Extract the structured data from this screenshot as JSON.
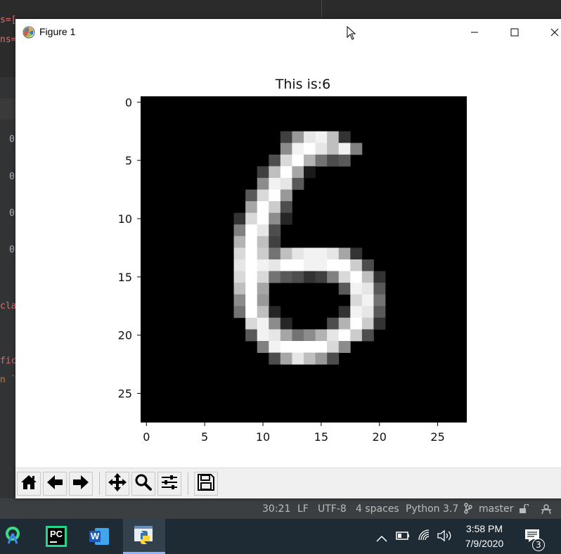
{
  "ide": {
    "code_fragments": [
      "s=[",
      "ns=",
      "0",
      "0",
      "0",
      "0",
      "cla",
      "fic",
      "n `",
      "'])"
    ],
    "status": {
      "position": "30:21",
      "line_ending": "LF",
      "encoding": "UTF-8",
      "indent": "4 spaces",
      "interpreter": "Python 3.7",
      "branch": "master"
    }
  },
  "figure_window": {
    "title": "Figure 1",
    "icon": "matplotlib-icon",
    "controls": [
      "minimize-icon",
      "maximize-icon",
      "close-icon"
    ]
  },
  "chart_data": {
    "type": "heatmap",
    "title": "This is:6",
    "colormap": "gray",
    "x_ticks": [
      "0",
      "5",
      "10",
      "15",
      "20",
      "25"
    ],
    "y_ticks": [
      "0",
      "5",
      "10",
      "15",
      "20",
      "25"
    ],
    "xlim": [
      -0.5,
      27.5
    ],
    "ylim": [
      27.5,
      -0.5
    ],
    "grid": false,
    "size": [
      28,
      28
    ],
    "pixels": [
      {
        "row": 3,
        "cells": [
          [
            12,
            0.25
          ],
          [
            13,
            0.6
          ],
          [
            14,
            0.9
          ],
          [
            15,
            0.95
          ],
          [
            16,
            0.75
          ],
          [
            17,
            0.2
          ]
        ]
      },
      {
        "row": 4,
        "cells": [
          [
            12,
            0.55
          ],
          [
            13,
            0.95
          ],
          [
            14,
            1
          ],
          [
            15,
            0.9
          ],
          [
            16,
            0.75
          ],
          [
            17,
            0.95
          ],
          [
            18,
            0.5
          ]
        ]
      },
      {
        "row": 5,
        "cells": [
          [
            11,
            0.3
          ],
          [
            12,
            0.85
          ],
          [
            13,
            1
          ],
          [
            14,
            0.7
          ],
          [
            15,
            0.45
          ],
          [
            16,
            0.3
          ],
          [
            17,
            0.35
          ]
        ]
      },
      {
        "row": 6,
        "cells": [
          [
            10,
            0.25
          ],
          [
            11,
            0.75
          ],
          [
            12,
            1
          ],
          [
            13,
            0.65
          ],
          [
            14,
            0.1
          ]
        ]
      },
      {
        "row": 7,
        "cells": [
          [
            10,
            0.55
          ],
          [
            11,
            0.95
          ],
          [
            12,
            0.9
          ],
          [
            13,
            0.35
          ]
        ]
      },
      {
        "row": 8,
        "cells": [
          [
            9,
            0.35
          ],
          [
            10,
            0.85
          ],
          [
            11,
            1
          ],
          [
            12,
            0.6
          ]
        ]
      },
      {
        "row": 9,
        "cells": [
          [
            9,
            0.65
          ],
          [
            10,
            1
          ],
          [
            11,
            0.8
          ],
          [
            12,
            0.3
          ]
        ]
      },
      {
        "row": 10,
        "cells": [
          [
            8,
            0.2
          ],
          [
            9,
            0.85
          ],
          [
            10,
            1
          ],
          [
            11,
            0.55
          ],
          [
            12,
            0.15
          ]
        ]
      },
      {
        "row": 11,
        "cells": [
          [
            8,
            0.5
          ],
          [
            9,
            1
          ],
          [
            10,
            0.9
          ],
          [
            11,
            0.3
          ]
        ]
      },
      {
        "row": 12,
        "cells": [
          [
            8,
            0.7
          ],
          [
            9,
            1
          ],
          [
            10,
            0.75
          ],
          [
            11,
            0.25
          ]
        ]
      },
      {
        "row": 13,
        "cells": [
          [
            8,
            0.85
          ],
          [
            9,
            1
          ],
          [
            10,
            0.8
          ],
          [
            11,
            0.45
          ],
          [
            12,
            0.75
          ],
          [
            13,
            0.9
          ],
          [
            14,
            0.95
          ],
          [
            15,
            0.95
          ],
          [
            16,
            0.9
          ],
          [
            17,
            0.65
          ],
          [
            18,
            0.2
          ]
        ]
      },
      {
        "row": 14,
        "cells": [
          [
            8,
            0.9
          ],
          [
            9,
            1
          ],
          [
            10,
            0.95
          ],
          [
            11,
            0.9
          ],
          [
            12,
            1
          ],
          [
            13,
            1
          ],
          [
            14,
            0.95
          ],
          [
            15,
            0.95
          ],
          [
            16,
            1
          ],
          [
            17,
            1
          ],
          [
            18,
            0.8
          ],
          [
            19,
            0.3
          ]
        ]
      },
      {
        "row": 15,
        "cells": [
          [
            8,
            0.85
          ],
          [
            9,
            1
          ],
          [
            10,
            0.85
          ],
          [
            11,
            0.45
          ],
          [
            12,
            0.35
          ],
          [
            13,
            0.3
          ],
          [
            14,
            0.2
          ],
          [
            15,
            0.25
          ],
          [
            16,
            0.5
          ],
          [
            17,
            0.85
          ],
          [
            18,
            1
          ],
          [
            19,
            0.75
          ],
          [
            20,
            0.2
          ]
        ]
      },
      {
        "row": 16,
        "cells": [
          [
            8,
            0.75
          ],
          [
            9,
            1
          ],
          [
            10,
            0.65
          ],
          [
            17,
            0.35
          ],
          [
            18,
            0.95
          ],
          [
            19,
            0.9
          ],
          [
            20,
            0.35
          ]
        ]
      },
      {
        "row": 17,
        "cells": [
          [
            8,
            0.55
          ],
          [
            9,
            1
          ],
          [
            10,
            0.6
          ],
          [
            18,
            0.85
          ],
          [
            19,
            0.95
          ],
          [
            20,
            0.45
          ]
        ]
      },
      {
        "row": 18,
        "cells": [
          [
            8,
            0.45
          ],
          [
            9,
            1
          ],
          [
            10,
            0.75
          ],
          [
            11,
            0.15
          ],
          [
            17,
            0.2
          ],
          [
            18,
            0.95
          ],
          [
            19,
            0.9
          ],
          [
            20,
            0.35
          ]
        ]
      },
      {
        "row": 19,
        "cells": [
          [
            9,
            0.85
          ],
          [
            10,
            0.95
          ],
          [
            11,
            0.55
          ],
          [
            12,
            0.15
          ],
          [
            16,
            0.3
          ],
          [
            17,
            0.7
          ],
          [
            18,
            1
          ],
          [
            19,
            0.8
          ],
          [
            20,
            0.2
          ]
        ]
      },
      {
        "row": 20,
        "cells": [
          [
            9,
            0.35
          ],
          [
            10,
            0.95
          ],
          [
            11,
            0.9
          ],
          [
            12,
            0.65
          ],
          [
            13,
            0.45
          ],
          [
            14,
            0.55
          ],
          [
            15,
            0.7
          ],
          [
            16,
            0.9
          ],
          [
            17,
            1
          ],
          [
            18,
            0.8
          ],
          [
            19,
            0.3
          ]
        ]
      },
      {
        "row": 21,
        "cells": [
          [
            10,
            0.5
          ],
          [
            11,
            0.95
          ],
          [
            12,
            1
          ],
          [
            13,
            1
          ],
          [
            14,
            1
          ],
          [
            15,
            1
          ],
          [
            16,
            0.85
          ],
          [
            17,
            0.55
          ]
        ]
      },
      {
        "row": 22,
        "cells": [
          [
            11,
            0.3
          ],
          [
            12,
            0.65
          ],
          [
            13,
            0.9
          ],
          [
            14,
            0.75
          ],
          [
            15,
            0.6
          ],
          [
            16,
            0.3
          ]
        ]
      }
    ]
  },
  "toolbar": {
    "buttons": [
      "home-icon",
      "back-icon",
      "forward-icon",
      "pan-icon",
      "zoom-icon",
      "configure-subplots-icon",
      "save-icon"
    ]
  },
  "taskbar": {
    "apps": [
      "android-studio-icon",
      "pycharm-icon",
      "word-icon",
      "python-icon"
    ],
    "pycharm_label": "PC",
    "word_label": "W",
    "time": "3:58 PM",
    "date": "7/9/2020",
    "notification_count": "3"
  },
  "colors": {
    "ide_bg": "#2b2b2b",
    "taskbar_bg": "#1e2a34",
    "toolbar_bg": "#f0f0f0",
    "accent": "#8ab4f8"
  }
}
